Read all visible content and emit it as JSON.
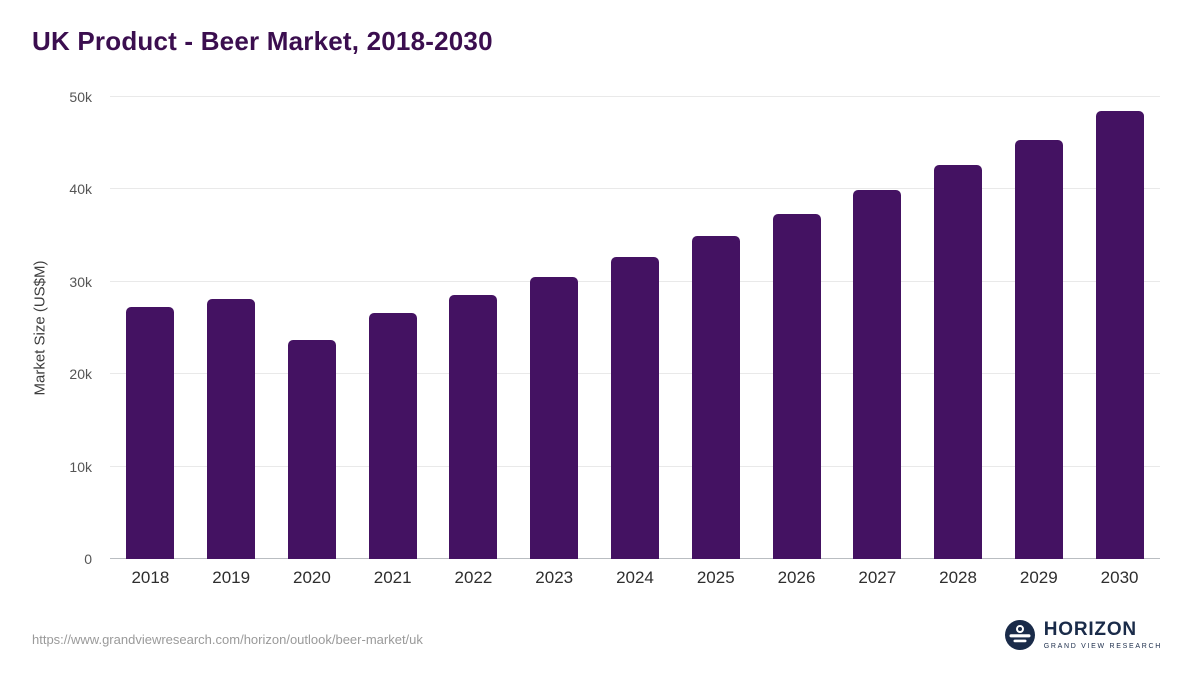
{
  "chart_data": {
    "type": "bar",
    "title": "UK Product - Beer Market, 2018-2030",
    "xlabel": "",
    "ylabel": "Market Size (US$M)",
    "categories": [
      "2018",
      "2019",
      "2020",
      "2021",
      "2022",
      "2023",
      "2024",
      "2025",
      "2026",
      "2027",
      "2028",
      "2029",
      "2030"
    ],
    "values": [
      27300,
      28100,
      23700,
      26600,
      28600,
      30500,
      32700,
      35000,
      37300,
      39900,
      42600,
      45400,
      48500
    ],
    "ylim": [
      0,
      50000
    ],
    "yticks": [
      {
        "value": 0,
        "label": "0"
      },
      {
        "value": 10000,
        "label": "10k"
      },
      {
        "value": 20000,
        "label": "20k"
      },
      {
        "value": 30000,
        "label": "30k"
      },
      {
        "value": 40000,
        "label": "40k"
      },
      {
        "value": 50000,
        "label": "50k"
      }
    ],
    "grid": "horizontal",
    "legend": "none",
    "bar_color": "#441262"
  },
  "footer": {
    "source_url": "https://www.grandviewresearch.com/horizon/outlook/beer-market/uk",
    "logo": {
      "name": "HORIZON",
      "subtitle": "GRAND VIEW RESEARCH"
    }
  },
  "colors": {
    "title": "#3b0e4f",
    "bar": "#441262",
    "logo_navy": "#1a2b49"
  }
}
